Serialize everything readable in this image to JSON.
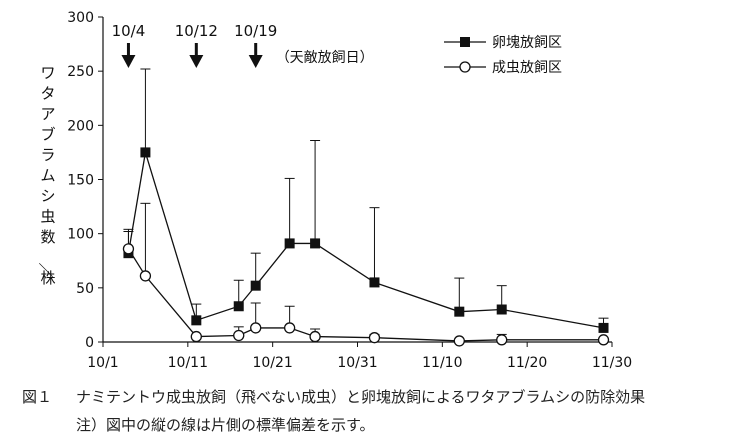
{
  "chart_data": {
    "type": "line",
    "ylabel": "ワタアブラムシ虫数／株",
    "ylim": [
      0,
      300
    ],
    "yticks": [
      0,
      50,
      100,
      150,
      200,
      250,
      300
    ],
    "x_ticks": [
      {
        "day": 0,
        "label": "10/1"
      },
      {
        "day": 10,
        "label": "10/11"
      },
      {
        "day": 20,
        "label": "10/21"
      },
      {
        "day": 30,
        "label": "10/31"
      },
      {
        "day": 40,
        "label": "11/10"
      },
      {
        "day": 50,
        "label": "11/20"
      },
      {
        "day": 60,
        "label": "11/30"
      }
    ],
    "release_arrows": [
      {
        "day": 3,
        "label": "10/4"
      },
      {
        "day": 11,
        "label": "10/12"
      },
      {
        "day": 18,
        "label": "10/19"
      }
    ],
    "release_note": "（天敵放飼日）",
    "legend_position": "top-right",
    "series": [
      {
        "name": "卵塊放飼区",
        "marker": "filled-square",
        "points": [
          {
            "day": 3,
            "y": 82,
            "err": 20
          },
          {
            "day": 5,
            "y": 175,
            "err": 77
          },
          {
            "day": 11,
            "y": 20,
            "err": 15
          },
          {
            "day": 16,
            "y": 33,
            "err": 24
          },
          {
            "day": 18,
            "y": 52,
            "err": 30
          },
          {
            "day": 22,
            "y": 91,
            "err": 60
          },
          {
            "day": 25,
            "y": 91,
            "err": 95
          },
          {
            "day": 32,
            "y": 55,
            "err": 69
          },
          {
            "day": 42,
            "y": 28,
            "err": 31
          },
          {
            "day": 47,
            "y": 30,
            "err": 22
          },
          {
            "day": 59,
            "y": 13,
            "err": 9
          }
        ]
      },
      {
        "name": "成虫放飼区",
        "marker": "open-circle",
        "points": [
          {
            "day": 3,
            "y": 86,
            "err": 18
          },
          {
            "day": 5,
            "y": 61,
            "err": 67
          },
          {
            "day": 11,
            "y": 5,
            "err": 0
          },
          {
            "day": 16,
            "y": 6,
            "err": 8
          },
          {
            "day": 18,
            "y": 13,
            "err": 23
          },
          {
            "day": 22,
            "y": 13,
            "err": 20
          },
          {
            "day": 25,
            "y": 5,
            "err": 7
          },
          {
            "day": 32,
            "y": 4,
            "err": 3
          },
          {
            "day": 42,
            "y": 1,
            "err": 0
          },
          {
            "day": 47,
            "y": 2,
            "err": 5
          },
          {
            "day": 59,
            "y": 2,
            "err": 0
          }
        ]
      }
    ]
  },
  "caption": {
    "number": "図１",
    "text": "ナミテントウ成虫放飼（飛べない成虫）と卵塊放飼によるワタアブラムシの防除効果",
    "note": "注）図中の縦の線は片側の標準偏差を示す。"
  }
}
